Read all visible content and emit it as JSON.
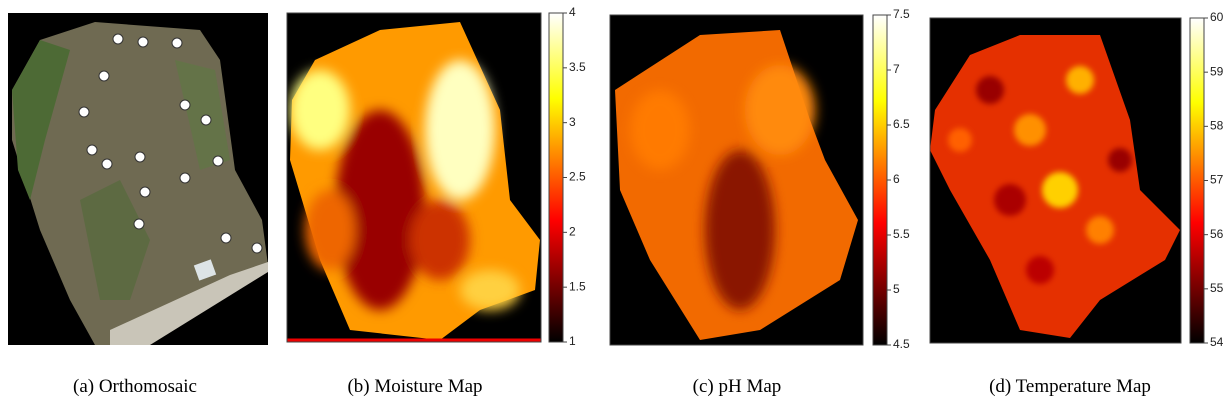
{
  "panels": [
    {
      "caption": "(a) Orthomosaic"
    },
    {
      "type": "heatmap",
      "caption": "(b) Moisture Map",
      "colorbar": {
        "lim": [
          1,
          4
        ],
        "ticks": [
          1,
          1.5,
          2,
          2.5,
          3,
          3.5,
          4
        ]
      }
    },
    {
      "type": "heatmap",
      "caption": "(c) pH Map",
      "colorbar": {
        "lim": [
          4.5,
          7.5
        ],
        "ticks": [
          4.5,
          5,
          5.5,
          6,
          6.5,
          7,
          7.5
        ]
      }
    },
    {
      "type": "heatmap",
      "caption": "(d) Temperature Map",
      "colorbar": {
        "lim": [
          54,
          60
        ],
        "ticks": [
          54,
          55,
          56,
          57,
          58,
          59,
          60
        ]
      }
    }
  ]
}
